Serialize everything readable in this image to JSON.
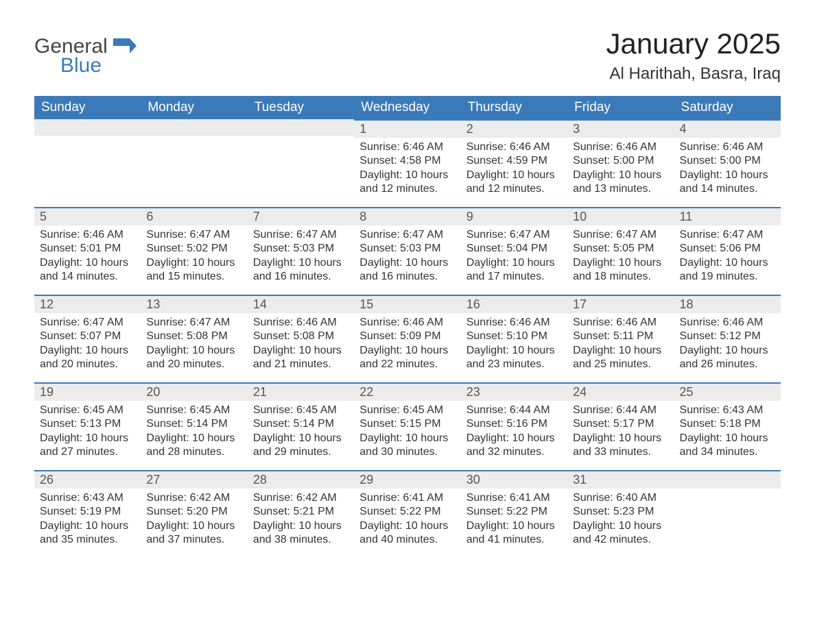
{
  "logo": {
    "word1": "General",
    "word2": "Blue"
  },
  "title": "January 2025",
  "location": "Al Harithah, Basra, Iraq",
  "colors": {
    "header_bg": "#3b7ab8",
    "header_text": "#ffffff",
    "daynum_bg": "#ececec",
    "daynum_border": "#3b7ab8",
    "body_text": "#333333",
    "page_bg": "#ffffff"
  },
  "typography": {
    "title_fontsize": 42,
    "location_fontsize": 24,
    "weekday_fontsize": 19,
    "daynum_fontsize": 18,
    "body_fontsize": 16
  },
  "weekdays": [
    "Sunday",
    "Monday",
    "Tuesday",
    "Wednesday",
    "Thursday",
    "Friday",
    "Saturday"
  ],
  "weeks": [
    [
      null,
      null,
      null,
      {
        "n": "1",
        "sunrise": "Sunrise: 6:46 AM",
        "sunset": "Sunset: 4:58 PM",
        "day1": "Daylight: 10 hours",
        "day2": "and 12 minutes."
      },
      {
        "n": "2",
        "sunrise": "Sunrise: 6:46 AM",
        "sunset": "Sunset: 4:59 PM",
        "day1": "Daylight: 10 hours",
        "day2": "and 12 minutes."
      },
      {
        "n": "3",
        "sunrise": "Sunrise: 6:46 AM",
        "sunset": "Sunset: 5:00 PM",
        "day1": "Daylight: 10 hours",
        "day2": "and 13 minutes."
      },
      {
        "n": "4",
        "sunrise": "Sunrise: 6:46 AM",
        "sunset": "Sunset: 5:00 PM",
        "day1": "Daylight: 10 hours",
        "day2": "and 14 minutes."
      }
    ],
    [
      {
        "n": "5",
        "sunrise": "Sunrise: 6:46 AM",
        "sunset": "Sunset: 5:01 PM",
        "day1": "Daylight: 10 hours",
        "day2": "and 14 minutes."
      },
      {
        "n": "6",
        "sunrise": "Sunrise: 6:47 AM",
        "sunset": "Sunset: 5:02 PM",
        "day1": "Daylight: 10 hours",
        "day2": "and 15 minutes."
      },
      {
        "n": "7",
        "sunrise": "Sunrise: 6:47 AM",
        "sunset": "Sunset: 5:03 PM",
        "day1": "Daylight: 10 hours",
        "day2": "and 16 minutes."
      },
      {
        "n": "8",
        "sunrise": "Sunrise: 6:47 AM",
        "sunset": "Sunset: 5:03 PM",
        "day1": "Daylight: 10 hours",
        "day2": "and 16 minutes."
      },
      {
        "n": "9",
        "sunrise": "Sunrise: 6:47 AM",
        "sunset": "Sunset: 5:04 PM",
        "day1": "Daylight: 10 hours",
        "day2": "and 17 minutes."
      },
      {
        "n": "10",
        "sunrise": "Sunrise: 6:47 AM",
        "sunset": "Sunset: 5:05 PM",
        "day1": "Daylight: 10 hours",
        "day2": "and 18 minutes."
      },
      {
        "n": "11",
        "sunrise": "Sunrise: 6:47 AM",
        "sunset": "Sunset: 5:06 PM",
        "day1": "Daylight: 10 hours",
        "day2": "and 19 minutes."
      }
    ],
    [
      {
        "n": "12",
        "sunrise": "Sunrise: 6:47 AM",
        "sunset": "Sunset: 5:07 PM",
        "day1": "Daylight: 10 hours",
        "day2": "and 20 minutes."
      },
      {
        "n": "13",
        "sunrise": "Sunrise: 6:47 AM",
        "sunset": "Sunset: 5:08 PM",
        "day1": "Daylight: 10 hours",
        "day2": "and 20 minutes."
      },
      {
        "n": "14",
        "sunrise": "Sunrise: 6:46 AM",
        "sunset": "Sunset: 5:08 PM",
        "day1": "Daylight: 10 hours",
        "day2": "and 21 minutes."
      },
      {
        "n": "15",
        "sunrise": "Sunrise: 6:46 AM",
        "sunset": "Sunset: 5:09 PM",
        "day1": "Daylight: 10 hours",
        "day2": "and 22 minutes."
      },
      {
        "n": "16",
        "sunrise": "Sunrise: 6:46 AM",
        "sunset": "Sunset: 5:10 PM",
        "day1": "Daylight: 10 hours",
        "day2": "and 23 minutes."
      },
      {
        "n": "17",
        "sunrise": "Sunrise: 6:46 AM",
        "sunset": "Sunset: 5:11 PM",
        "day1": "Daylight: 10 hours",
        "day2": "and 25 minutes."
      },
      {
        "n": "18",
        "sunrise": "Sunrise: 6:46 AM",
        "sunset": "Sunset: 5:12 PM",
        "day1": "Daylight: 10 hours",
        "day2": "and 26 minutes."
      }
    ],
    [
      {
        "n": "19",
        "sunrise": "Sunrise: 6:45 AM",
        "sunset": "Sunset: 5:13 PM",
        "day1": "Daylight: 10 hours",
        "day2": "and 27 minutes."
      },
      {
        "n": "20",
        "sunrise": "Sunrise: 6:45 AM",
        "sunset": "Sunset: 5:14 PM",
        "day1": "Daylight: 10 hours",
        "day2": "and 28 minutes."
      },
      {
        "n": "21",
        "sunrise": "Sunrise: 6:45 AM",
        "sunset": "Sunset: 5:14 PM",
        "day1": "Daylight: 10 hours",
        "day2": "and 29 minutes."
      },
      {
        "n": "22",
        "sunrise": "Sunrise: 6:45 AM",
        "sunset": "Sunset: 5:15 PM",
        "day1": "Daylight: 10 hours",
        "day2": "and 30 minutes."
      },
      {
        "n": "23",
        "sunrise": "Sunrise: 6:44 AM",
        "sunset": "Sunset: 5:16 PM",
        "day1": "Daylight: 10 hours",
        "day2": "and 32 minutes."
      },
      {
        "n": "24",
        "sunrise": "Sunrise: 6:44 AM",
        "sunset": "Sunset: 5:17 PM",
        "day1": "Daylight: 10 hours",
        "day2": "and 33 minutes."
      },
      {
        "n": "25",
        "sunrise": "Sunrise: 6:43 AM",
        "sunset": "Sunset: 5:18 PM",
        "day1": "Daylight: 10 hours",
        "day2": "and 34 minutes."
      }
    ],
    [
      {
        "n": "26",
        "sunrise": "Sunrise: 6:43 AM",
        "sunset": "Sunset: 5:19 PM",
        "day1": "Daylight: 10 hours",
        "day2": "and 35 minutes."
      },
      {
        "n": "27",
        "sunrise": "Sunrise: 6:42 AM",
        "sunset": "Sunset: 5:20 PM",
        "day1": "Daylight: 10 hours",
        "day2": "and 37 minutes."
      },
      {
        "n": "28",
        "sunrise": "Sunrise: 6:42 AM",
        "sunset": "Sunset: 5:21 PM",
        "day1": "Daylight: 10 hours",
        "day2": "and 38 minutes."
      },
      {
        "n": "29",
        "sunrise": "Sunrise: 6:41 AM",
        "sunset": "Sunset: 5:22 PM",
        "day1": "Daylight: 10 hours",
        "day2": "and 40 minutes."
      },
      {
        "n": "30",
        "sunrise": "Sunrise: 6:41 AM",
        "sunset": "Sunset: 5:22 PM",
        "day1": "Daylight: 10 hours",
        "day2": "and 41 minutes."
      },
      {
        "n": "31",
        "sunrise": "Sunrise: 6:40 AM",
        "sunset": "Sunset: 5:23 PM",
        "day1": "Daylight: 10 hours",
        "day2": "and 42 minutes."
      },
      null
    ]
  ]
}
